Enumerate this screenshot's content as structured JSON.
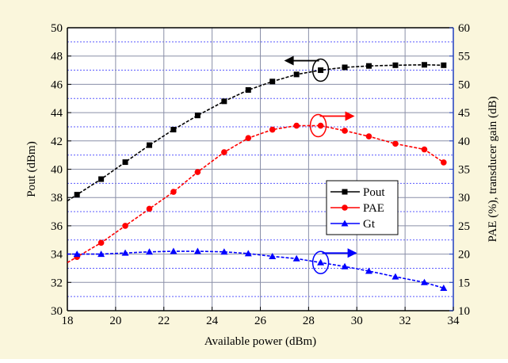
{
  "colors": {
    "background": "#faf6dc",
    "plot_area": "#ffffff",
    "grid_major": "#8a8fa8",
    "grid_minor": "#5b5bff",
    "axis_left": "#000000",
    "axis_right": "#1f3fbf"
  },
  "chart_data": {
    "type": "line",
    "title": "",
    "xlabel": "Available power (dBm)",
    "ylabel_left": "Pout (dBm)",
    "ylabel_right": "PAE (%), transducer gain (dB)",
    "xlim": [
      18,
      34
    ],
    "ylim_left": [
      30,
      50
    ],
    "ylim_right": [
      10,
      60
    ],
    "x_ticks": [
      18,
      20,
      22,
      24,
      26,
      28,
      30,
      32,
      34
    ],
    "y_left_ticks": [
      30,
      32,
      34,
      36,
      38,
      40,
      42,
      44,
      46,
      48,
      50
    ],
    "y_right_ticks": [
      10,
      15,
      20,
      25,
      30,
      35,
      40,
      45,
      50,
      55,
      60
    ],
    "grid": true,
    "legend_position": "center-right",
    "series": [
      {
        "name": "Pout",
        "axis": "left",
        "color": "#000000",
        "marker": "square",
        "x": [
          18.4,
          19.4,
          20.4,
          21.4,
          22.4,
          23.4,
          24.5,
          25.5,
          26.5,
          27.5,
          28.5,
          29.5,
          30.5,
          31.6,
          32.8,
          33.6
        ],
        "y": [
          38.2,
          39.3,
          40.5,
          41.7,
          42.8,
          43.8,
          44.8,
          45.6,
          46.2,
          46.7,
          47.0,
          47.2,
          47.3,
          47.35,
          47.38,
          47.35
        ]
      },
      {
        "name": "PAE",
        "axis": "right",
        "color": "#ff0000",
        "marker": "circle",
        "x": [
          18.4,
          19.4,
          20.4,
          21.4,
          22.4,
          23.4,
          24.5,
          25.5,
          26.5,
          27.5,
          28.5,
          29.5,
          30.5,
          31.6,
          32.8,
          33.6
        ],
        "y": [
          19.5,
          22.0,
          25.0,
          28.0,
          31.0,
          34.5,
          38.0,
          40.5,
          42.0,
          42.7,
          42.7,
          41.8,
          40.8,
          39.5,
          38.5,
          36.2
        ]
      },
      {
        "name": "Gt",
        "axis": "right",
        "color": "#0000ff",
        "marker": "triangle",
        "x": [
          18.4,
          19.4,
          20.4,
          21.4,
          22.4,
          23.4,
          24.5,
          25.5,
          26.5,
          27.5,
          28.5,
          29.5,
          30.5,
          31.6,
          32.8,
          33.6
        ],
        "y": [
          20.0,
          20.0,
          20.2,
          20.4,
          20.5,
          20.5,
          20.4,
          20.1,
          19.6,
          19.2,
          18.5,
          17.8,
          17.0,
          16.0,
          15.0,
          14.0
        ]
      }
    ],
    "annotations": [
      {
        "type": "ellipse-arrow",
        "series": "Pout",
        "target_axis": "left",
        "cx": 28.5,
        "cy": 47.0
      },
      {
        "type": "ellipse-arrow",
        "series": "PAE",
        "target_axis": "right",
        "cx": 28.4,
        "cy": 42.7
      },
      {
        "type": "ellipse-arrow",
        "series": "Gt",
        "target_axis": "right",
        "cx": 28.5,
        "cy": 18.5
      }
    ]
  }
}
